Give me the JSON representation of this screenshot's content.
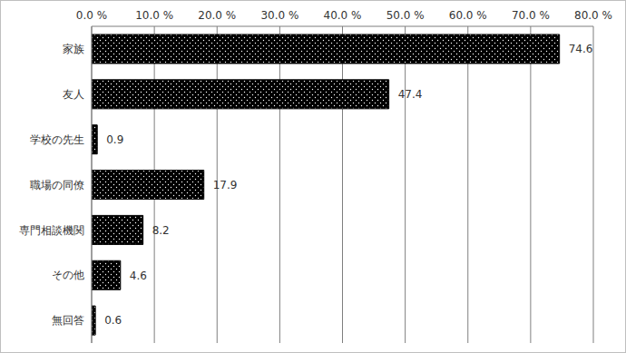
{
  "chart_data": {
    "type": "bar",
    "orientation": "horizontal",
    "categories": [
      "家族",
      "友人",
      "学校の先生",
      "職場の同僚",
      "専門相談機関",
      "その他",
      "無回答"
    ],
    "values": [
      74.6,
      47.4,
      0.9,
      17.9,
      8.2,
      4.6,
      0.6
    ],
    "color": "#000000",
    "xlim": [
      0,
      80
    ],
    "xticks": [
      {
        "value": 0,
        "label": "0.0 %"
      },
      {
        "value": 10,
        "label": "10.0 %"
      },
      {
        "value": 20,
        "label": "20.0 %"
      },
      {
        "value": 30,
        "label": "30.0 %"
      },
      {
        "value": 40,
        "label": "40.0 %"
      },
      {
        "value": 50,
        "label": "50.0 %"
      },
      {
        "value": 60,
        "label": "60.0 %"
      },
      {
        "value": 70,
        "label": "70.0 %"
      },
      {
        "value": 80,
        "label": "80.0 %"
      }
    ],
    "grid": true,
    "data_labels": true
  }
}
